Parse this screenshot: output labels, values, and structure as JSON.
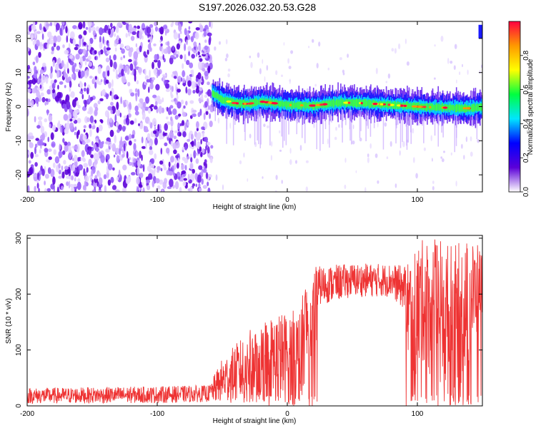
{
  "title": "S197.2026.032.20.53.G28",
  "chart_data": [
    {
      "type": "heatmap",
      "xlabel": "Height of straight line (km)",
      "ylabel": "Frequency (Hz)",
      "xlim": [
        -200,
        150
      ],
      "ylim": [
        -25,
        25
      ],
      "xticks": [
        -200,
        -100,
        0,
        100
      ],
      "yticks": [
        -20,
        -10,
        0,
        10,
        20
      ],
      "colorbar": {
        "label": "Normalized spectral amplitude",
        "range": [
          0,
          1
        ],
        "ticks": [
          0.0,
          0.2,
          0.4,
          0.6,
          0.8
        ],
        "tick_labels": [
          "0.0",
          "0.2",
          "0.4",
          "0.6",
          "0.8"
        ],
        "colormap": [
          "#ffffff",
          "#5b00d8",
          "#0000ff",
          "#00e5ff",
          "#00ff40",
          "#ffff00",
          "#ff9900",
          "#ff0040"
        ]
      },
      "features": {
        "noise_region_x": [
          -200,
          -58
        ],
        "signal_track": [
          {
            "x": -58,
            "f": 4.0
          },
          {
            "x": -50,
            "f": 2.0
          },
          {
            "x": -40,
            "f": 1.0
          },
          {
            "x": -30,
            "f": 0.8
          },
          {
            "x": -20,
            "f": 1.5
          },
          {
            "x": -10,
            "f": 1.0
          },
          {
            "x": 0,
            "f": 0.5
          },
          {
            "x": 20,
            "f": 0.3
          },
          {
            "x": 40,
            "f": 1.2
          },
          {
            "x": 60,
            "f": 1.0
          },
          {
            "x": 80,
            "f": 0.5
          },
          {
            "x": 100,
            "f": 0.0
          },
          {
            "x": 120,
            "f": -0.3
          },
          {
            "x": 140,
            "f": -0.5
          },
          {
            "x": 150,
            "f": 0.0
          }
        ]
      }
    },
    {
      "type": "line",
      "xlabel": "Height of straight line (km)",
      "ylabel": "SNR (10 * v/v)",
      "xlim": [
        -200,
        150
      ],
      "ylim": [
        0,
        305
      ],
      "xticks": [
        -200,
        -100,
        0,
        100
      ],
      "yticks": [
        0,
        100,
        200,
        300
      ],
      "color": "#ee3333",
      "envelope": [
        {
          "x": -200,
          "mean": 18,
          "spread": 14
        },
        {
          "x": -100,
          "mean": 20,
          "spread": 15
        },
        {
          "x": -60,
          "mean": 22,
          "spread": 15
        },
        {
          "x": -50,
          "mean": 45,
          "spread": 40
        },
        {
          "x": -30,
          "mean": 70,
          "spread": 65
        },
        {
          "x": -10,
          "mean": 85,
          "spread": 80
        },
        {
          "x": 10,
          "mean": 90,
          "spread": 85
        },
        {
          "x": 14,
          "mean": 140,
          "spread": 90
        },
        {
          "x": 20,
          "mean": 150,
          "spread": 100
        },
        {
          "x": 25,
          "mean": 215,
          "spread": 35
        },
        {
          "x": 50,
          "mean": 225,
          "spread": 30
        },
        {
          "x": 80,
          "mean": 225,
          "spread": 30
        },
        {
          "x": 90,
          "mean": 210,
          "spread": 40
        },
        {
          "x": 95,
          "mean": 150,
          "spread": 130
        },
        {
          "x": 105,
          "mean": 190,
          "spread": 110
        },
        {
          "x": 115,
          "mean": 160,
          "spread": 140
        },
        {
          "x": 130,
          "mean": 150,
          "spread": 140
        },
        {
          "x": 140,
          "mean": 190,
          "spread": 110
        },
        {
          "x": 150,
          "mean": 220,
          "spread": 60
        }
      ]
    }
  ]
}
